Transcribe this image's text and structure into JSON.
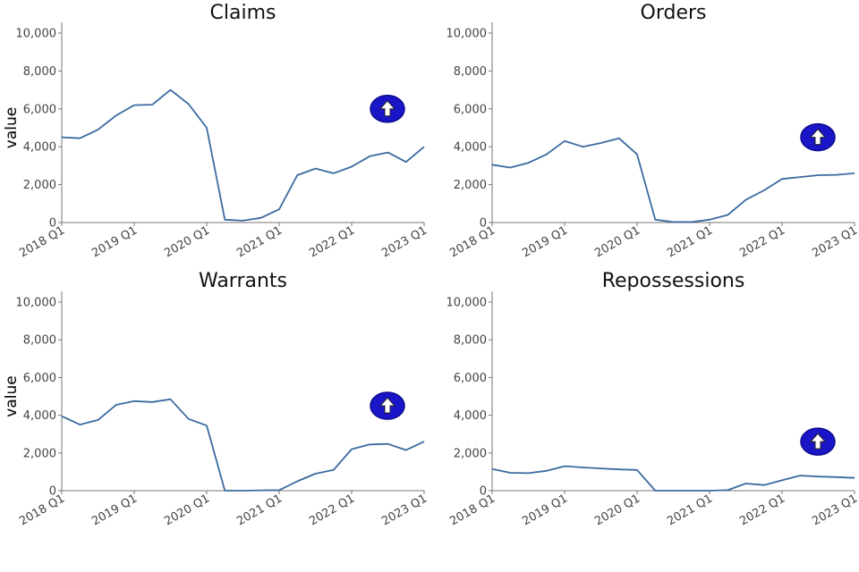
{
  "colors": {
    "line": "#3a6aa0",
    "badge": "#1a16c8"
  },
  "chart_data": [
    {
      "type": "line",
      "title": "Claims",
      "xlabel": "",
      "ylabel": "value",
      "ylim": [
        0,
        10000
      ],
      "yticks": [
        "0",
        "2,000",
        "4,000",
        "6,000",
        "8,000",
        "10,000"
      ],
      "xticks": [
        "2018 Q1",
        "2019 Q1",
        "2020 Q1",
        "2021 Q1",
        "2022 Q1",
        "2023 Q1"
      ],
      "x": [
        "2018 Q1",
        "2018 Q2",
        "2018 Q3",
        "2018 Q4",
        "2019 Q1",
        "2019 Q2",
        "2019 Q3",
        "2019 Q4",
        "2020 Q1",
        "2020 Q2",
        "2020 Q3",
        "2020 Q4",
        "2021 Q1",
        "2021 Q2",
        "2021 Q3",
        "2021 Q4",
        "2022 Q1",
        "2022 Q2",
        "2022 Q3",
        "2022 Q4",
        "2023 Q1"
      ],
      "values": [
        4500,
        4450,
        4900,
        5650,
        6200,
        6220,
        7000,
        6250,
        5000,
        150,
        100,
        250,
        700,
        2500,
        2850,
        2600,
        2950,
        3500,
        3700,
        3200,
        4000
      ],
      "badge_icon": "up-arrow-icon",
      "badge_value": 6000
    },
    {
      "type": "line",
      "title": "Orders",
      "xlabel": "",
      "ylabel": "value",
      "ylim": [
        0,
        10000
      ],
      "yticks": [
        "0",
        "2,000",
        "4,000",
        "6,000",
        "8,000",
        "10,000"
      ],
      "xticks": [
        "2018 Q1",
        "2019 Q1",
        "2020 Q1",
        "2021 Q1",
        "2022 Q1",
        "2023 Q1"
      ],
      "x": [
        "2018 Q1",
        "2018 Q2",
        "2018 Q3",
        "2018 Q4",
        "2019 Q1",
        "2019 Q2",
        "2019 Q3",
        "2019 Q4",
        "2020 Q1",
        "2020 Q2",
        "2020 Q3",
        "2020 Q4",
        "2021 Q1",
        "2021 Q2",
        "2021 Q3",
        "2021 Q4",
        "2022 Q1",
        "2022 Q2",
        "2022 Q3",
        "2022 Q4",
        "2023 Q1"
      ],
      "values": [
        3050,
        2900,
        3150,
        3600,
        4300,
        4000,
        4200,
        4450,
        3600,
        150,
        30,
        30,
        150,
        400,
        1200,
        1700,
        2300,
        2400,
        2500,
        2520,
        2600
      ],
      "badge_icon": "up-arrow-icon",
      "badge_value": 4500
    },
    {
      "type": "line",
      "title": "Warrants",
      "xlabel": "",
      "ylabel": "value",
      "ylim": [
        0,
        10000
      ],
      "yticks": [
        "0",
        "2,000",
        "4,000",
        "6,000",
        "8,000",
        "10,000"
      ],
      "xticks": [
        "2018 Q1",
        "2019 Q1",
        "2020 Q1",
        "2021 Q1",
        "2022 Q1",
        "2023 Q1"
      ],
      "x": [
        "2018 Q1",
        "2018 Q2",
        "2018 Q3",
        "2018 Q4",
        "2019 Q1",
        "2019 Q2",
        "2019 Q3",
        "2019 Q4",
        "2020 Q1",
        "2020 Q2",
        "2020 Q3",
        "2020 Q4",
        "2021 Q1",
        "2021 Q2",
        "2021 Q3",
        "2021 Q4",
        "2022 Q1",
        "2022 Q2",
        "2022 Q3",
        "2022 Q4",
        "2023 Q1"
      ],
      "values": [
        3950,
        3500,
        3750,
        4550,
        4750,
        4700,
        4850,
        3800,
        3450,
        0,
        0,
        20,
        30,
        500,
        900,
        1100,
        2200,
        2450,
        2480,
        2150,
        2600
      ],
      "badge_icon": "up-arrow-icon",
      "badge_value": 4500
    },
    {
      "type": "line",
      "title": "Repossessions",
      "xlabel": "",
      "ylabel": "value",
      "ylim": [
        0,
        10000
      ],
      "yticks": [
        "0",
        "2,000",
        "4,000",
        "6,000",
        "8,000",
        "10,000"
      ],
      "xticks": [
        "2018 Q1",
        "2019 Q1",
        "2020 Q1",
        "2021 Q1",
        "2022 Q1",
        "2023 Q1"
      ],
      "x": [
        "2018 Q1",
        "2018 Q2",
        "2018 Q3",
        "2018 Q4",
        "2019 Q1",
        "2019 Q2",
        "2019 Q3",
        "2019 Q4",
        "2020 Q1",
        "2020 Q2",
        "2020 Q3",
        "2020 Q4",
        "2021 Q1",
        "2021 Q2",
        "2021 Q3",
        "2021 Q4",
        "2022 Q1",
        "2022 Q2",
        "2022 Q3",
        "2022 Q4",
        "2023 Q1"
      ],
      "values": [
        1150,
        950,
        930,
        1050,
        1300,
        1230,
        1180,
        1130,
        1100,
        0,
        0,
        0,
        0,
        30,
        380,
        300,
        550,
        800,
        750,
        720,
        680
      ],
      "badge_icon": "up-arrow-icon",
      "badge_value": 2600
    }
  ]
}
